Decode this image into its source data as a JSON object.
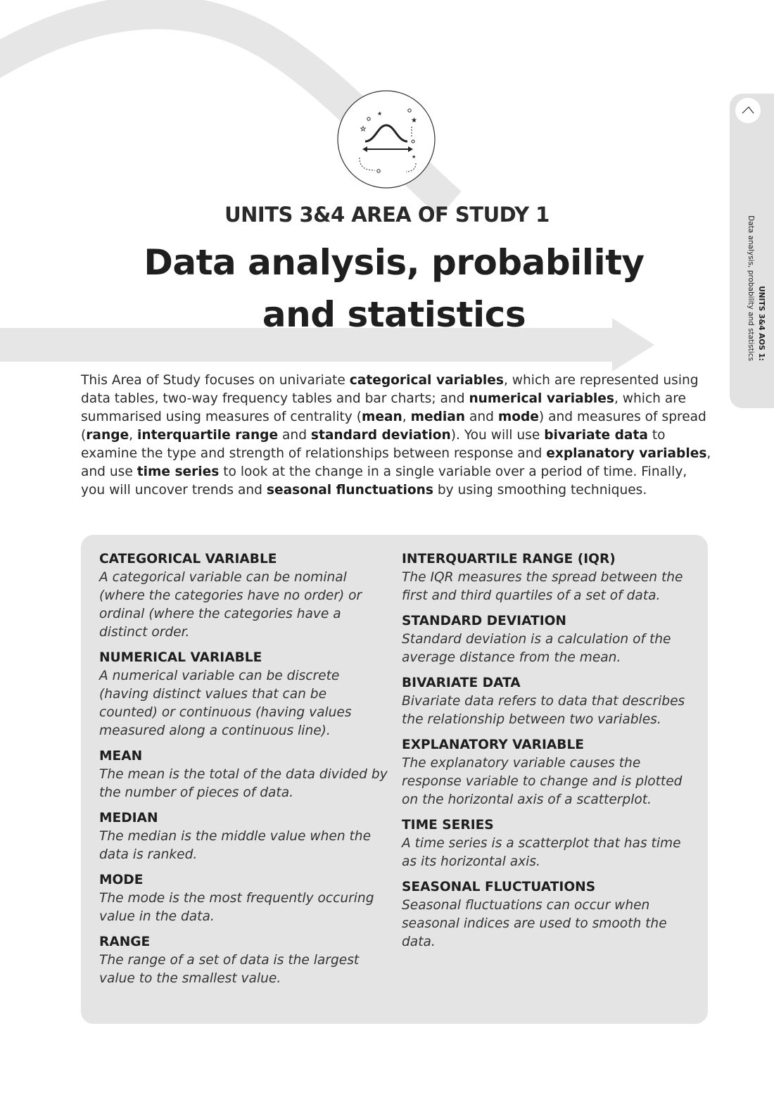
{
  "header": {
    "unit": "UNITS 3&4 AREA OF STUDY 1",
    "title_line1": "Data analysis, probability",
    "title_line2": "and statistics"
  },
  "side_tab": {
    "line1": "UNITS 3&4 AOS 1:",
    "line2": "Data analysis, probability and statistics",
    "icon": "chevron-icon",
    "color": "#e2e2e2"
  },
  "emblem": {
    "icon": "bell-curve-emblem-icon"
  },
  "intro": {
    "segments": [
      {
        "text": "This Area of Study focuses on univariate ",
        "bold": false
      },
      {
        "text": "categorical variables",
        "bold": true
      },
      {
        "text": ", which are represented using data tables, two-way frequency tables and bar charts; and ",
        "bold": false
      },
      {
        "text": "numerical variables",
        "bold": true
      },
      {
        "text": ", which are summarised using measures of centrality (",
        "bold": false
      },
      {
        "text": "mean",
        "bold": true
      },
      {
        "text": ", ",
        "bold": false
      },
      {
        "text": "median",
        "bold": true
      },
      {
        "text": " and ",
        "bold": false
      },
      {
        "text": "mode",
        "bold": true
      },
      {
        "text": ") and measures of spread (",
        "bold": false
      },
      {
        "text": "range",
        "bold": true
      },
      {
        "text": ", ",
        "bold": false
      },
      {
        "text": "interquartile range",
        "bold": true
      },
      {
        "text": " and ",
        "bold": false
      },
      {
        "text": "standard deviation",
        "bold": true
      },
      {
        "text": "). You will use ",
        "bold": false
      },
      {
        "text": "bivariate data",
        "bold": true
      },
      {
        "text": " to examine the type and strength of relationships between response and ",
        "bold": false
      },
      {
        "text": "explanatory variables",
        "bold": true
      },
      {
        "text": ", and use ",
        "bold": false
      },
      {
        "text": "time series",
        "bold": true
      },
      {
        "text": " to look at the change in a single variable over a period of time. Finally, you will uncover trends and ",
        "bold": false
      },
      {
        "text": "seasonal flunctuations",
        "bold": true
      },
      {
        "text": " by using smoothing techniques.",
        "bold": false
      }
    ]
  },
  "glossary": {
    "background": "#e4e4e4",
    "left": [
      {
        "term": "CATEGORICAL VARIABLE",
        "definition": "A categorical variable can be nominal (where the categories have no order) or ordinal (where the categories have a distinct order."
      },
      {
        "term": "NUMERICAL VARIABLE",
        "definition": "A numerical variable can be discrete (having distinct values that can be counted) or continuous (having values measured along a continuous line)."
      },
      {
        "term": "MEAN",
        "definition": "The mean is the total of the data divided by the number of pieces of data."
      },
      {
        "term": "MEDIAN",
        "definition": "The median is the middle value when the data is ranked."
      },
      {
        "term": "MODE",
        "definition": "The mode is the most frequently occuring value in the data."
      },
      {
        "term": "RANGE",
        "definition": "The range of a set of data is the largest value to the smallest value."
      }
    ],
    "right": [
      {
        "term": "INTERQUARTILE RANGE (IQR)",
        "definition": "The IQR measures the spread between the first and third quartiles of a set of data."
      },
      {
        "term": "STANDARD DEVIATION",
        "definition": "Standard deviation is a calculation of the average distance from the mean."
      },
      {
        "term": "BIVARIATE DATA",
        "definition": "Bivariate data refers to data that describes the relationship between two variables."
      },
      {
        "term": "EXPLANATORY VARIABLE",
        "definition": "The explanatory variable causes the response variable to change and is plotted on the horizontal axis of a scatterplot."
      },
      {
        "term": "TIME SERIES",
        "definition": "A time series is a scatterplot that has time as its horizontal axis."
      },
      {
        "term": "SEASONAL FLUCTUATIONS",
        "definition": "Seasonal fluctuations can occur when seasonal indices are used to smooth the data."
      }
    ]
  }
}
